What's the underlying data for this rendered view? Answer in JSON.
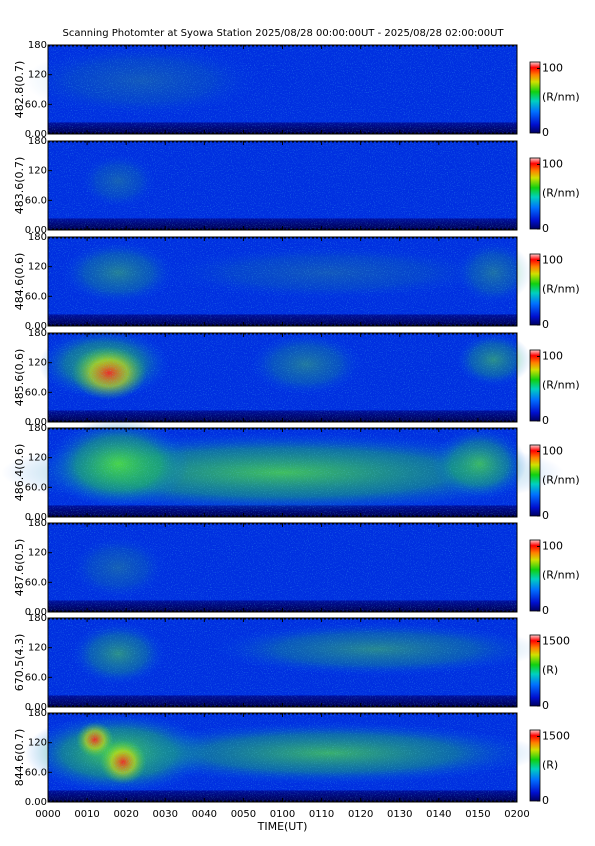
{
  "title": "Scanning Photomter at Syowa Station 2025/08/28 00:00:00UT - 2025/08/28 02:00:00UT",
  "chart_data": [
    {
      "type": "heatmap",
      "ylabel": "482.8(0.7)",
      "ylim": [
        0,
        180
      ],
      "yticks": [
        {
          "value": 0,
          "label": "0.00"
        },
        {
          "value": 60,
          "label": "60.0"
        },
        120,
        180
      ],
      "colorbar_label": "(R/nm)",
      "clim": [
        0,
        110
      ],
      "cticks": [
        0,
        100
      ]
    },
    {
      "type": "heatmap",
      "ylabel": "483.6(0.7)",
      "ylim": [
        0,
        180
      ],
      "yticks": [
        {
          "value": 0,
          "label": "0.00"
        },
        {
          "value": 60,
          "label": "60.0"
        },
        120,
        180
      ],
      "colorbar_label": "(R/nm)",
      "clim": [
        0,
        110
      ],
      "cticks": [
        0,
        100
      ]
    },
    {
      "type": "heatmap",
      "ylabel": "484.6(0.6)",
      "ylim": [
        0,
        180
      ],
      "yticks": [
        {
          "value": 0,
          "label": "0.00"
        },
        {
          "value": 60,
          "label": "60.0"
        },
        120,
        180
      ],
      "colorbar_label": "(R/nm)",
      "clim": [
        0,
        110
      ],
      "cticks": [
        0,
        100
      ]
    },
    {
      "type": "heatmap",
      "ylabel": "485.6(0.6)",
      "ylim": [
        0,
        180
      ],
      "yticks": [
        {
          "value": 0,
          "label": "0.00"
        },
        {
          "value": 60,
          "label": "60.0"
        },
        120,
        180
      ],
      "colorbar_label": "(R/nm)",
      "clim": [
        0,
        110
      ],
      "cticks": [
        0,
        100
      ]
    },
    {
      "type": "heatmap",
      "ylabel": "486.4(0.6)",
      "ylim": [
        0,
        180
      ],
      "yticks": [
        {
          "value": 0,
          "label": "0.00"
        },
        {
          "value": 60,
          "label": "60.0"
        },
        120,
        180
      ],
      "colorbar_label": "(R/nm)",
      "clim": [
        0,
        110
      ],
      "cticks": [
        0,
        100
      ]
    },
    {
      "type": "heatmap",
      "ylabel": "487.6(0.5)",
      "ylim": [
        0,
        180
      ],
      "yticks": [
        {
          "value": 0,
          "label": "0.00"
        },
        {
          "value": 60,
          "label": "60.0"
        },
        120,
        180
      ],
      "colorbar_label": "(R/nm)",
      "clim": [
        0,
        110
      ],
      "cticks": [
        0,
        100
      ]
    },
    {
      "type": "heatmap",
      "ylabel": "670.5(4.3)",
      "ylim": [
        0,
        180
      ],
      "yticks": [
        {
          "value": 0,
          "label": "0.00"
        },
        {
          "value": 60,
          "label": "60.0"
        },
        120,
        180
      ],
      "colorbar_label": "(R)",
      "clim": [
        0,
        1650
      ],
      "cticks": [
        0,
        1500
      ]
    },
    {
      "type": "heatmap",
      "ylabel": "844.6(0.7)",
      "ylim": [
        0,
        180
      ],
      "yticks": [
        {
          "value": 0,
          "label": "0.00"
        },
        {
          "value": 60,
          "label": "60.0"
        },
        120,
        180
      ],
      "colorbar_label": "(R)",
      "clim": [
        0,
        1650
      ],
      "cticks": [
        0,
        1500
      ],
      "xlabel": "TIME(UT)",
      "xlim": [
        0,
        120
      ],
      "xticks": [
        {
          "value": 0,
          "label": "0000"
        },
        {
          "value": 10,
          "label": "0010"
        },
        {
          "value": 20,
          "label": "0020"
        },
        {
          "value": 30,
          "label": "0030"
        },
        {
          "value": 40,
          "label": "0040"
        },
        {
          "value": 50,
          "label": "0050"
        },
        {
          "value": 60,
          "label": "0100"
        },
        {
          "value": 70,
          "label": "0110"
        },
        {
          "value": 80,
          "label": "0120"
        },
        {
          "value": 90,
          "label": "0130"
        },
        {
          "value": 100,
          "label": "0140"
        },
        {
          "value": 110,
          "label": "0150"
        },
        {
          "value": 120,
          "label": "0200"
        }
      ]
    }
  ]
}
